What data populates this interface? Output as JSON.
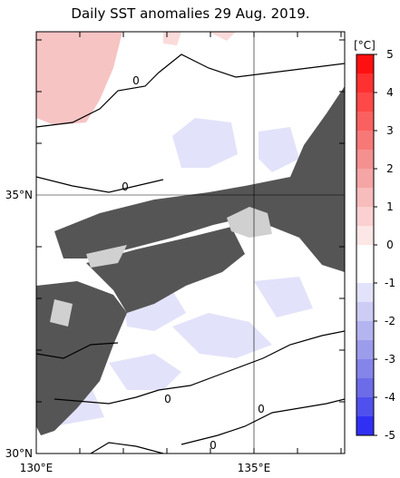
{
  "title": "Daily SST anomalies 29 Aug. 2019.",
  "map": {
    "lat_labels": [
      "35°N",
      "30°N"
    ],
    "lon_labels": [
      "130°E",
      "135°E"
    ],
    "contour_labels": [
      "0",
      "0",
      "0",
      "0",
      "0"
    ]
  },
  "colorbar": {
    "unit": "[°C]",
    "range": [
      -5,
      5
    ],
    "ticks": [
      5,
      4,
      3,
      2,
      1,
      0,
      -1,
      -2,
      -3,
      -4,
      -5
    ],
    "colors": [
      "#ff1010",
      "#ff3030",
      "#ff4848",
      "#fb6060",
      "#f87878",
      "#f59090",
      "#f5a5a5",
      "#f7bcbc",
      "#fad0d0",
      "#fde6e6",
      "#ffffff",
      "#ffffff",
      "#e2e2fa",
      "#ccccf5",
      "#b4b4f0",
      "#9c9cec",
      "#8484ea",
      "#6c6ce8",
      "#5050ee",
      "#3030f5"
    ]
  }
}
